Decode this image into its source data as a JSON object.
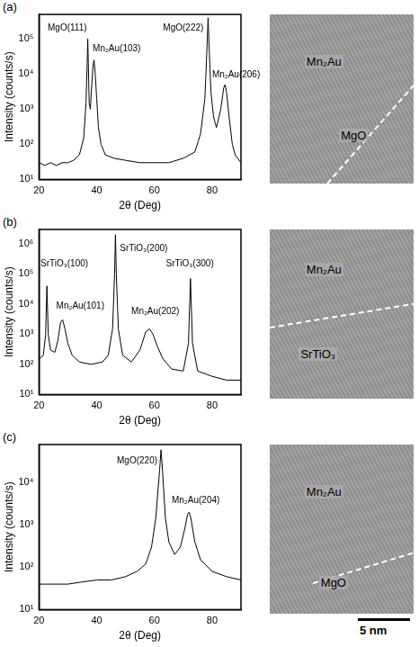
{
  "chart_data": [
    {
      "type": "line",
      "panel": "(a)",
      "x_label": "2θ (Deg)",
      "y_label": "Intensity (counts/s)",
      "color": "#000000",
      "log": "y",
      "grid": false,
      "xlim": [
        20,
        90
      ],
      "xticks": [
        20,
        40,
        60,
        80
      ],
      "ylim": [
        10,
        500000
      ],
      "yticks": [
        {
          "value": 10,
          "label": "10¹"
        },
        {
          "value": 100,
          "label": "10²"
        },
        {
          "value": 1000,
          "label": "10³"
        },
        {
          "value": 10000,
          "label": "10⁴"
        },
        {
          "value": 100000,
          "label": "10⁵"
        }
      ],
      "x": [
        20,
        22,
        24,
        26,
        28,
        30,
        32,
        34,
        35.5,
        36.3,
        36.7,
        36.9,
        37.1,
        37.4,
        37.8,
        38.3,
        38.8,
        39.1,
        39.5,
        40,
        40.6,
        41.5,
        43,
        46,
        50,
        55,
        60,
        65,
        70,
        74,
        76,
        77.5,
        78.2,
        78.6,
        79,
        79.6,
        80.5,
        81.5,
        83,
        84,
        84.5,
        85,
        86,
        87,
        88,
        90
      ],
      "values": [
        30,
        25,
        30,
        25,
        30,
        30,
        35,
        50,
        150,
        1500,
        20000,
        100000,
        20000,
        1500,
        1000,
        5000,
        20000,
        25000,
        10000,
        2000,
        300,
        100,
        50,
        40,
        35,
        30,
        30,
        30,
        40,
        60,
        200,
        2000,
        50000,
        400000,
        50000,
        3000,
        600,
        300,
        1000,
        4000,
        5000,
        3000,
        500,
        100,
        50,
        30
      ],
      "annotations": [
        {
          "text": "MgO(111)",
          "x": 23,
          "y": 150000
        },
        {
          "text": "Mn₂Au(103)",
          "x": 38.6,
          "y": 40000
        },
        {
          "text": "MgO(222)",
          "x": 63,
          "y": 150000
        },
        {
          "text": "Mn₂Au(206)",
          "x": 80,
          "y": 7000
        }
      ]
    },
    {
      "type": "line",
      "panel": "(b)",
      "x_label": "2θ (Deg)",
      "y_label": "Intensity (counts/s)",
      "color": "#000000",
      "log": "y",
      "grid": false,
      "xlim": [
        20,
        90
      ],
      "xticks": [
        20,
        40,
        60,
        80
      ],
      "ylim": [
        10,
        3000000
      ],
      "yticks": [
        {
          "value": 10,
          "label": "10¹"
        },
        {
          "value": 100,
          "label": "10²"
        },
        {
          "value": 1000,
          "label": "10³"
        },
        {
          "value": 10000,
          "label": "10⁴"
        },
        {
          "value": 100000,
          "label": "10⁵"
        },
        {
          "value": 1000000,
          "label": "10⁶"
        }
      ],
      "x": [
        20,
        21.5,
        22.3,
        22.75,
        23.2,
        24,
        25.5,
        26.5,
        27.5,
        28.2,
        29,
        30,
        31.5,
        34,
        38,
        42,
        44,
        45.5,
        46.2,
        46.5,
        46.8,
        47.5,
        49,
        52,
        55,
        57,
        58.3,
        59.5,
        61,
        63,
        66,
        70,
        71.8,
        72.5,
        73.2,
        75,
        80,
        85,
        90
      ],
      "values": [
        150,
        200,
        1000,
        40000,
        1000,
        300,
        250,
        600,
        2500,
        3000,
        1500,
        500,
        200,
        120,
        100,
        120,
        200,
        1500,
        100000,
        2000000,
        100000,
        1500,
        200,
        120,
        300,
        1200,
        1500,
        1000,
        400,
        150,
        70,
        60,
        500,
        70000,
        500,
        60,
        40,
        30,
        30
      ],
      "annotations": [
        {
          "text": "SrTiO₃(100)",
          "x": 20.5,
          "y": 150000
        },
        {
          "text": "Mn₂Au(101)",
          "x": 26,
          "y": 6000
        },
        {
          "text": "SrTiO₃(200)",
          "x": 48,
          "y": 500000
        },
        {
          "text": "Mn₂Au(202)",
          "x": 52,
          "y": 4000
        },
        {
          "text": "SrTiO₃(300)",
          "x": 64,
          "y": 150000
        }
      ]
    },
    {
      "type": "line",
      "panel": "(c)",
      "x_label": "2θ (Deg)",
      "y_label": "Intensity (counts/s)",
      "color": "#000000",
      "log": "y",
      "grid": false,
      "xlim": [
        20,
        90
      ],
      "xticks": [
        20,
        40,
        60,
        80
      ],
      "ylim": [
        10,
        80000
      ],
      "yticks": [
        {
          "value": 10,
          "label": "10¹"
        },
        {
          "value": 100,
          "label": "10²"
        },
        {
          "value": 1000,
          "label": "10³"
        },
        {
          "value": 10000,
          "label": "10⁴"
        }
      ],
      "x": [
        20,
        25,
        30,
        35,
        40,
        45,
        50,
        54,
        57,
        59,
        60.5,
        61.8,
        62.3,
        62.8,
        63.8,
        65,
        67,
        69,
        70.5,
        71.5,
        72,
        72.6,
        74,
        76,
        80,
        85,
        90
      ],
      "values": [
        40,
        40,
        40,
        45,
        50,
        50,
        60,
        80,
        120,
        300,
        1500,
        20000,
        60000,
        20000,
        1500,
        400,
        200,
        300,
        800,
        1800,
        2000,
        1500,
        400,
        150,
        80,
        60,
        50
      ],
      "annotations": [
        {
          "text": "MgO(220)",
          "x": 47,
          "y": 25000
        },
        {
          "text": "Mn₂Au(204)",
          "x": 66,
          "y": 3000
        }
      ]
    }
  ],
  "images": [
    {
      "panel": "(a)",
      "labels": [
        "Mn₂Au",
        "MgO"
      ]
    },
    {
      "panel": "(b)",
      "labels": [
        "Mn₂Au",
        "SrTiO₃"
      ]
    },
    {
      "panel": "(c)",
      "labels": [
        "Mn₂Au",
        "MgO"
      ]
    }
  ],
  "scale_bar": "5 nm"
}
